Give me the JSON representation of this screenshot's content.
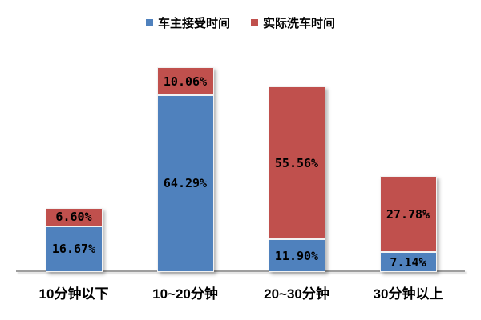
{
  "chart_data": {
    "type": "bar",
    "subtype": "stacked",
    "categories": [
      "10分钟以下",
      "10~20分钟",
      "20~30分钟",
      "30分钟以上"
    ],
    "series": [
      {
        "name": "车主接受时间",
        "color": "#4f81bd",
        "values": [
          16.67,
          64.29,
          11.9,
          7.14
        ],
        "labels": [
          "16.67%",
          "64.29%",
          "11.90%",
          "7.14%"
        ]
      },
      {
        "name": "实际洗车时间",
        "color": "#c0504d",
        "values": [
          6.6,
          10.06,
          55.56,
          27.78
        ],
        "labels": [
          "6.60%",
          "10.06%",
          "55.56%",
          "27.78%"
        ]
      }
    ],
    "legend_position": "top",
    "grid": false,
    "background": "#ffffff",
    "axis_line_color": "#9e9e9e",
    "ylim": [
      0,
      80
    ]
  }
}
